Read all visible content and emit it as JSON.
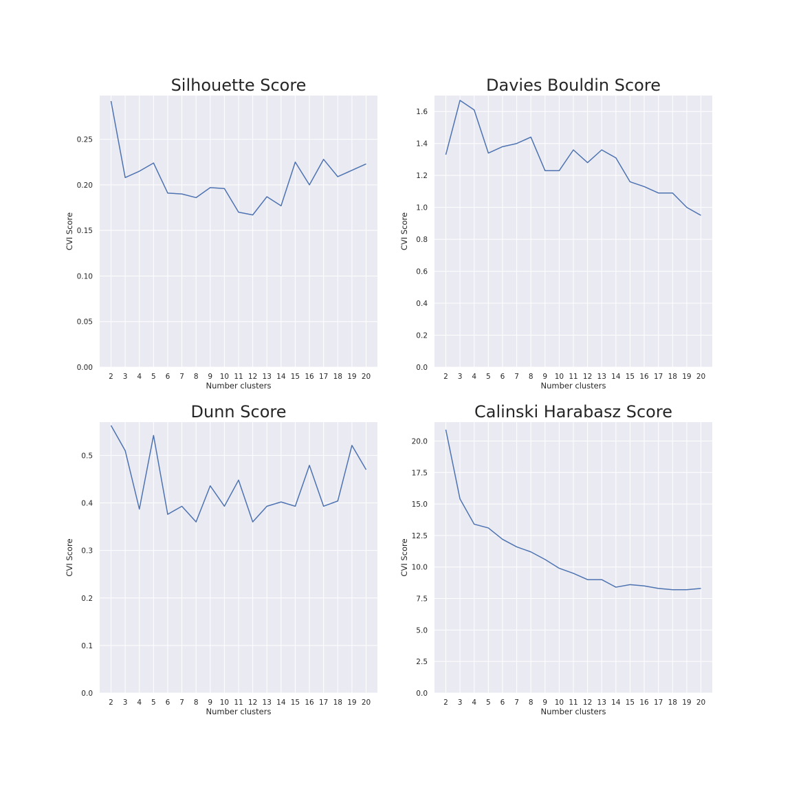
{
  "chart_data": [
    {
      "type": "line",
      "title": "Silhouette Score",
      "xlabel": "Number clusters",
      "ylabel": "CVI Score",
      "x": [
        2,
        3,
        4,
        5,
        6,
        7,
        8,
        9,
        10,
        11,
        12,
        13,
        14,
        15,
        16,
        17,
        18,
        19,
        20
      ],
      "y": [
        0.292,
        0.208,
        0.215,
        0.224,
        0.191,
        0.19,
        0.186,
        0.197,
        0.196,
        0.17,
        0.167,
        0.187,
        0.177,
        0.225,
        0.2,
        0.228,
        0.209,
        0.216,
        0.223
      ],
      "ylim": [
        0,
        0.298
      ],
      "yticks": [
        "0.00",
        "0.05",
        "0.10",
        "0.15",
        "0.20",
        "0.25"
      ],
      "xticks": [
        "2",
        "3",
        "4",
        "5",
        "6",
        "7",
        "8",
        "9",
        "10",
        "11",
        "12",
        "13",
        "14",
        "15",
        "16",
        "17",
        "18",
        "19",
        "20"
      ],
      "grid": true
    },
    {
      "type": "line",
      "title": "Davies Bouldin Score",
      "xlabel": "Number clusters",
      "ylabel": "CVI Score",
      "x": [
        2,
        3,
        4,
        5,
        6,
        7,
        8,
        9,
        10,
        11,
        12,
        13,
        14,
        15,
        16,
        17,
        18,
        19,
        20
      ],
      "y": [
        1.33,
        1.67,
        1.61,
        1.34,
        1.38,
        1.4,
        1.44,
        1.23,
        1.23,
        1.36,
        1.28,
        1.36,
        1.31,
        1.16,
        1.13,
        1.09,
        1.09,
        1.0,
        0.95
      ],
      "ylim": [
        0,
        1.7
      ],
      "yticks": [
        "0.0",
        "0.2",
        "0.4",
        "0.6",
        "0.8",
        "1.0",
        "1.2",
        "1.4",
        "1.6"
      ],
      "xticks": [
        "2",
        "3",
        "4",
        "5",
        "6",
        "7",
        "8",
        "9",
        "10",
        "11",
        "12",
        "13",
        "14",
        "15",
        "16",
        "17",
        "18",
        "19",
        "20"
      ],
      "grid": true
    },
    {
      "type": "line",
      "title": "Dunn Score",
      "xlabel": "Number clusters",
      "ylabel": "CVI Score",
      "x": [
        2,
        3,
        4,
        5,
        6,
        7,
        8,
        9,
        10,
        11,
        12,
        13,
        14,
        15,
        16,
        17,
        18,
        19,
        20
      ],
      "y": [
        0.563,
        0.51,
        0.387,
        0.542,
        0.376,
        0.393,
        0.36,
        0.436,
        0.393,
        0.448,
        0.36,
        0.393,
        0.402,
        0.393,
        0.479,
        0.393,
        0.404,
        0.521,
        0.47
      ],
      "ylim": [
        0,
        0.57
      ],
      "yticks": [
        "0.0",
        "0.1",
        "0.2",
        "0.3",
        "0.4",
        "0.5"
      ],
      "xticks": [
        "2",
        "3",
        "4",
        "5",
        "6",
        "7",
        "8",
        "9",
        "10",
        "11",
        "12",
        "13",
        "14",
        "15",
        "16",
        "17",
        "18",
        "19",
        "20"
      ],
      "grid": true
    },
    {
      "type": "line",
      "title": "Calinski Harabasz Score",
      "xlabel": "Number clusters",
      "ylabel": "CVI Score",
      "x": [
        2,
        3,
        4,
        5,
        6,
        7,
        8,
        9,
        10,
        11,
        12,
        13,
        14,
        15,
        16,
        17,
        18,
        19,
        20
      ],
      "y": [
        20.9,
        15.4,
        13.4,
        13.1,
        12.2,
        11.6,
        11.2,
        10.6,
        9.9,
        9.5,
        9.0,
        9.0,
        8.4,
        8.6,
        8.5,
        8.3,
        8.2,
        8.2,
        8.3
      ],
      "ylim": [
        0,
        21.5
      ],
      "yticks": [
        "0.0",
        "2.5",
        "5.0",
        "7.5",
        "10.0",
        "12.5",
        "15.0",
        "17.5",
        "20.0"
      ],
      "xticks": [
        "2",
        "3",
        "4",
        "5",
        "6",
        "7",
        "8",
        "9",
        "10",
        "11",
        "12",
        "13",
        "14",
        "15",
        "16",
        "17",
        "18",
        "19",
        "20"
      ],
      "grid": true
    }
  ]
}
